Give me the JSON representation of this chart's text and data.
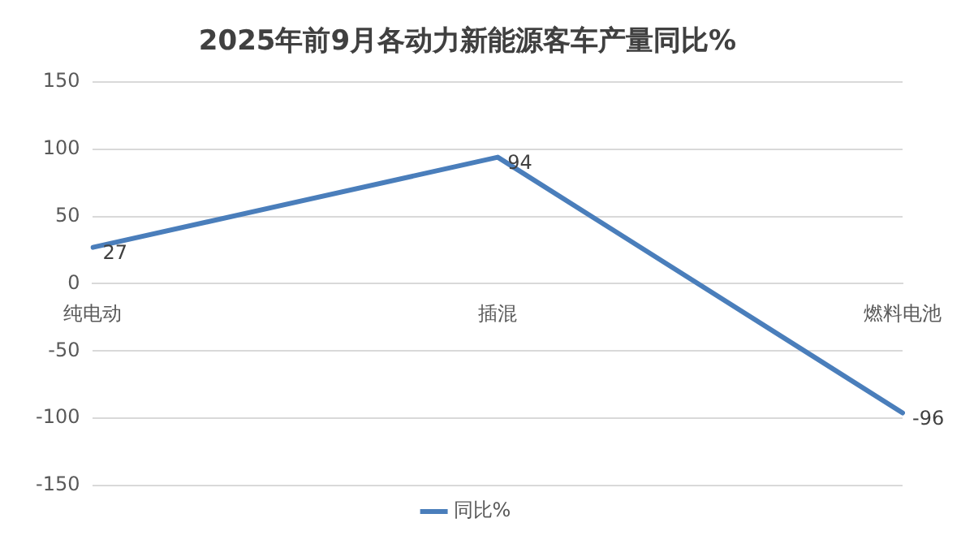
{
  "chart_data": {
    "type": "line",
    "title": "2025年前9月各动力新能源客车产量同比%",
    "categories": [
      "纯电动",
      "插混",
      "燃料电池"
    ],
    "series": [
      {
        "name": "同比%",
        "color": "#4a7ebb",
        "values": [
          27,
          94,
          -96
        ]
      }
    ],
    "ylim": [
      -150,
      150
    ],
    "yticks": [
      -150,
      -100,
      -50,
      0,
      50,
      100,
      150
    ],
    "grid": "y",
    "legend": "bottom",
    "data_labels": true,
    "marker": "none",
    "line_style": "solid"
  }
}
